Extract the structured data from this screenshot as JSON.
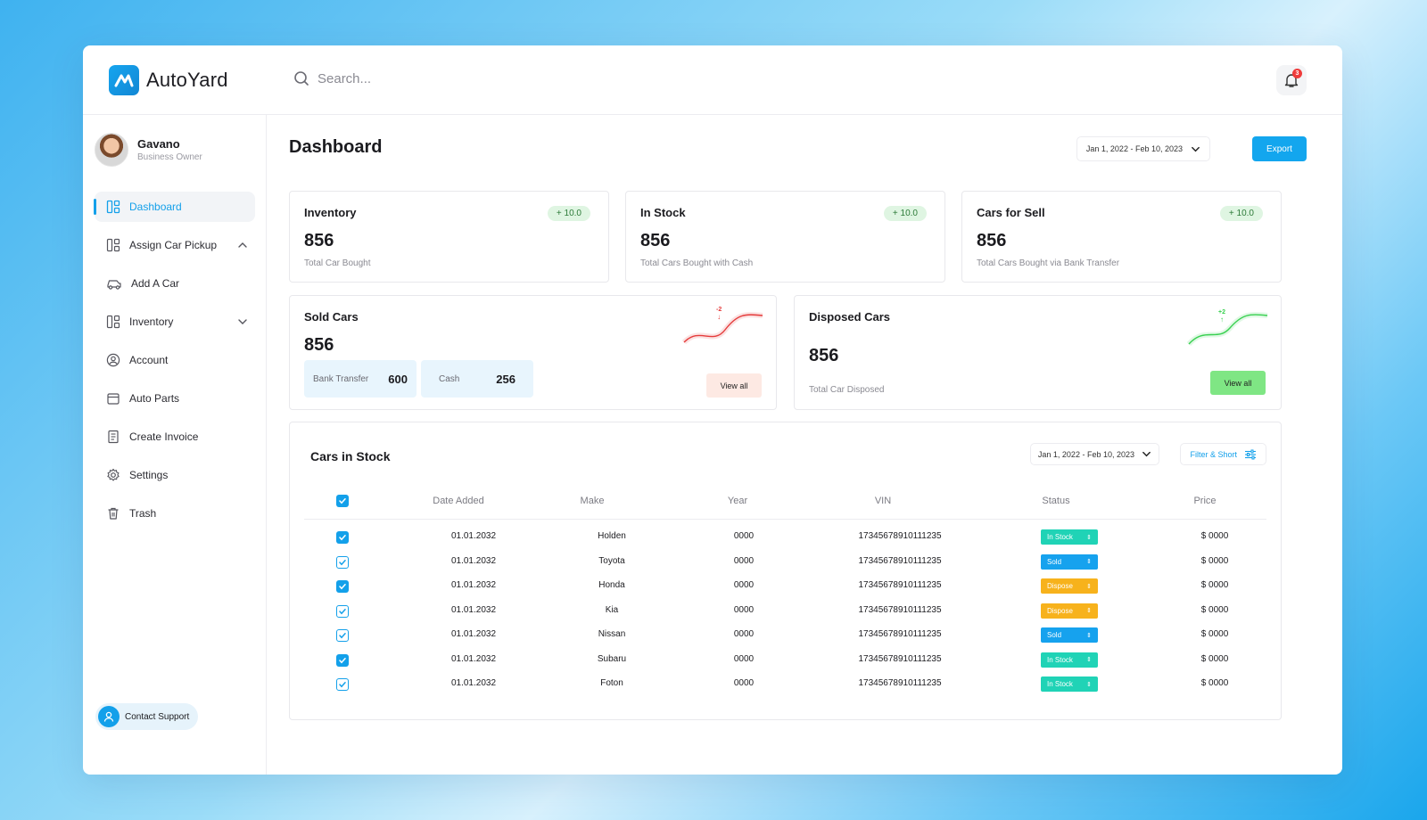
{
  "app": {
    "name": "AutoYard"
  },
  "search": {
    "placeholder": "Search..."
  },
  "notifications": {
    "count": "3"
  },
  "user": {
    "name": "Gavano",
    "role": "Business Owner"
  },
  "sidebar": {
    "items": [
      {
        "label": "Dashboard",
        "icon": "dashboard-icon",
        "active": true
      },
      {
        "label": "Assign Car Pickup",
        "icon": "grid-icon",
        "expandable": "up"
      },
      {
        "label": "Add A Car",
        "icon": "car-icon"
      },
      {
        "label": "Inventory",
        "icon": "grid-icon",
        "expandable": "down"
      },
      {
        "label": "Account",
        "icon": "user-circle-icon"
      },
      {
        "label": "Auto Parts",
        "icon": "box-icon"
      },
      {
        "label": "Create Invoice",
        "icon": "invoice-icon"
      },
      {
        "label": "Settings",
        "icon": "gear-icon"
      },
      {
        "label": "Trash",
        "icon": "trash-icon"
      }
    ],
    "support_label": "Contact Support"
  },
  "header": {
    "title": "Dashboard",
    "date_range": "Jan 1, 2022 - Feb 10, 2023",
    "export_label": "Export"
  },
  "stats": [
    {
      "title": "Inventory",
      "value": "856",
      "sub": "Total Car Bought",
      "badge": "+ 10.0"
    },
    {
      "title": "In Stock",
      "value": "856",
      "sub": "Total Cars Bought with Cash",
      "badge": "+ 10.0"
    },
    {
      "title": "Cars for Sell",
      "value": "856",
      "sub": "Total Cars Bought via Bank Transfer",
      "badge": "+ 10.0"
    }
  ],
  "sold": {
    "title": "Sold Cars",
    "value": "856",
    "bank_label": "Bank Transfer",
    "bank_value": "600",
    "cash_label": "Cash",
    "cash_value": "256",
    "trend": "-2",
    "view_all": "View all"
  },
  "disposed": {
    "title": "Disposed Cars",
    "value": "856",
    "sub": "Total Car Disposed",
    "trend": "+2",
    "view_all": "View all"
  },
  "stock_table": {
    "title": "Cars in Stock",
    "date_range": "Jan 1, 2022 - Feb 10, 2023",
    "filter_label": "Filter & Short",
    "columns": [
      "Date Added",
      "Make",
      "Year",
      "VIN",
      "Status",
      "Price"
    ],
    "rows": [
      {
        "date": "01.01.2032",
        "make": "Holden",
        "year": "0000",
        "vin": "17345678910111235",
        "status": "In Stock",
        "price": "$ 0000",
        "checked": "filled"
      },
      {
        "date": "01.01.2032",
        "make": "Toyota",
        "year": "0000",
        "vin": "17345678910111235",
        "status": "Sold",
        "price": "$ 0000",
        "checked": "outline"
      },
      {
        "date": "01.01.2032",
        "make": "Honda",
        "year": "0000",
        "vin": "17345678910111235",
        "status": "Dispose",
        "price": "$ 0000",
        "checked": "filled"
      },
      {
        "date": "01.01.2032",
        "make": "Kia",
        "year": "0000",
        "vin": "17345678910111235",
        "status": "Dispose",
        "price": "$ 0000",
        "checked": "outline"
      },
      {
        "date": "01.01.2032",
        "make": "Nissan",
        "year": "0000",
        "vin": "17345678910111235",
        "status": "Sold",
        "price": "$ 0000",
        "checked": "outline"
      },
      {
        "date": "01.01.2032",
        "make": "Subaru",
        "year": "0000",
        "vin": "17345678910111235",
        "status": "In Stock",
        "price": "$ 0000",
        "checked": "filled"
      },
      {
        "date": "01.01.2032",
        "make": "Foton",
        "year": "0000",
        "vin": "17345678910111235",
        "status": "In Stock",
        "price": "$ 0000",
        "checked": "outline"
      }
    ]
  },
  "colors": {
    "accent": "#13a0ea",
    "in_stock": "#20d3b6",
    "sold": "#16a2ee",
    "dispose": "#f7b21c",
    "trend_down": "#e53b3b",
    "trend_up": "#39d150",
    "view_all_sold_bg": "#fde9e3",
    "view_all_disposed_bg": "#7fe684"
  }
}
